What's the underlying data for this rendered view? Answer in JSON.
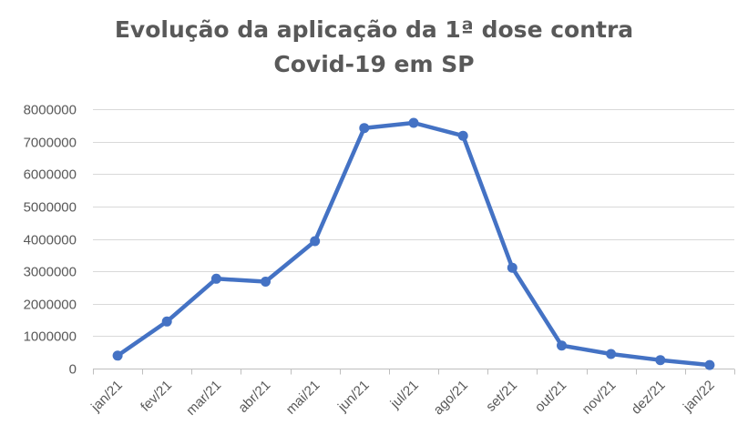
{
  "chart_data": {
    "type": "line",
    "title_lines": [
      "Evolução da aplicação da 1ª dose contra",
      "Covid-19 em SP"
    ],
    "categories": [
      "jan/21",
      "fev/21",
      "mar/21",
      "abr/21",
      "mai/21",
      "jun/21",
      "jul/21",
      "ago/21",
      "set/21",
      "out/21",
      "nov/21",
      "dez/21",
      "jan/22"
    ],
    "series": [
      {
        "values": [
          400000,
          1450000,
          2770000,
          2680000,
          3930000,
          7420000,
          7580000,
          7180000,
          3110000,
          710000,
          450000,
          260000,
          110000
        ],
        "color": "#4472C4"
      }
    ],
    "ylim": [
      0,
      8000000
    ],
    "yticks": [
      0,
      1000000,
      2000000,
      3000000,
      4000000,
      5000000,
      6000000,
      7000000,
      8000000
    ],
    "grid": true,
    "legend": "none"
  }
}
